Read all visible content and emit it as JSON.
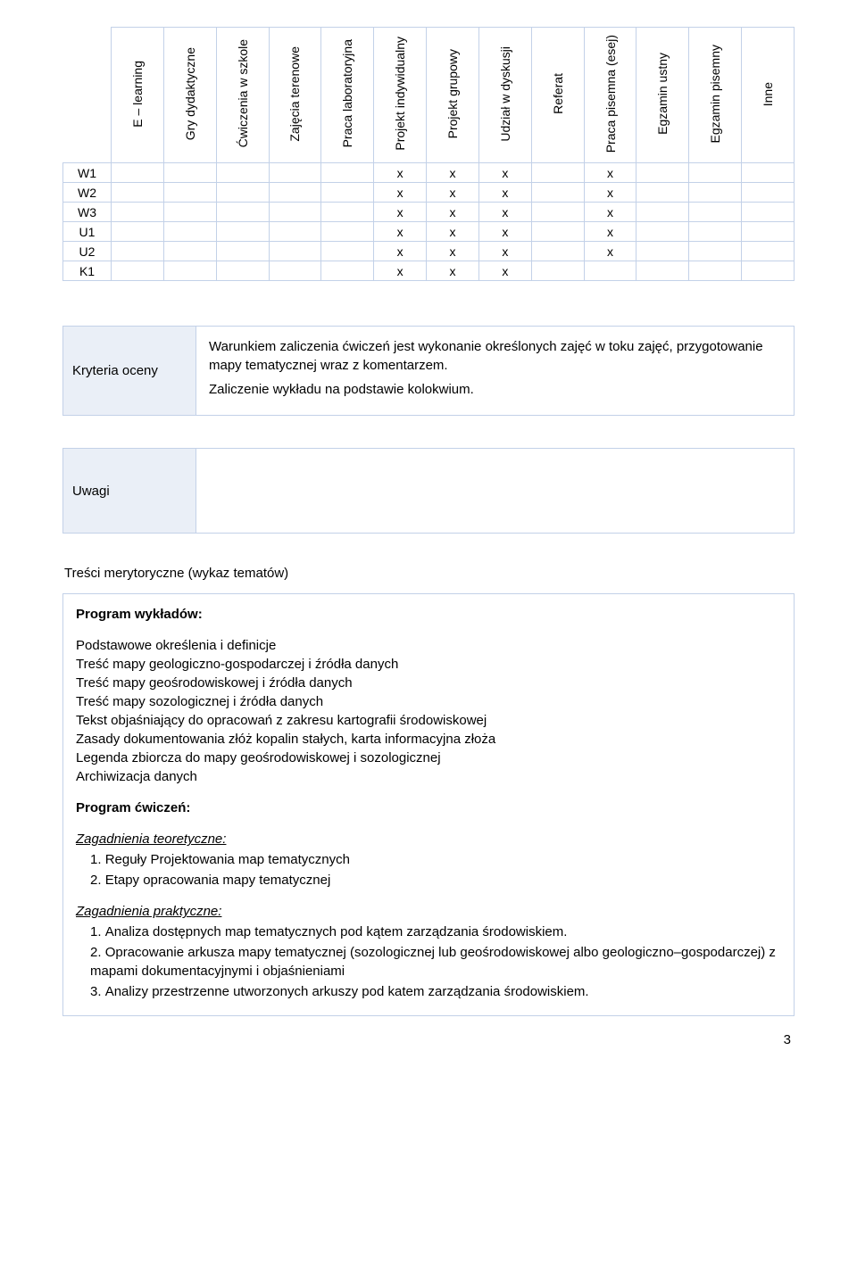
{
  "gridTable": {
    "headers": [
      "E – learning",
      "Gry dydaktyczne",
      "Ćwiczenia w szkole",
      "Zajęcia terenowe",
      "Praca laboratoryjna",
      "Projekt indywidualny",
      "Projekt grupowy",
      "Udział w dyskusji",
      "Referat",
      "Praca pisemna (esej)",
      "Egzamin ustny",
      "Egzamin pisemny",
      "Inne"
    ],
    "rows": [
      {
        "label": "W1",
        "cells": [
          "",
          "",
          "",
          "",
          "",
          "x",
          "x",
          "x",
          "",
          "x",
          "",
          "",
          ""
        ]
      },
      {
        "label": "W2",
        "cells": [
          "",
          "",
          "",
          "",
          "",
          "x",
          "x",
          "x",
          "",
          "x",
          "",
          "",
          ""
        ]
      },
      {
        "label": "W3",
        "cells": [
          "",
          "",
          "",
          "",
          "",
          "x",
          "x",
          "x",
          "",
          "x",
          "",
          "",
          ""
        ]
      },
      {
        "label": "U1",
        "cells": [
          "",
          "",
          "",
          "",
          "",
          "x",
          "x",
          "x",
          "",
          "x",
          "",
          "",
          ""
        ]
      },
      {
        "label": "U2",
        "cells": [
          "",
          "",
          "",
          "",
          "",
          "x",
          "x",
          "x",
          "",
          "x",
          "",
          "",
          ""
        ]
      },
      {
        "label": "K1",
        "cells": [
          "",
          "",
          "",
          "",
          "",
          "x",
          "x",
          "x",
          "",
          "",
          "",
          "",
          ""
        ]
      }
    ],
    "border_color": "#c3d1e8",
    "header_bg": "#ffffff",
    "label_bg": "#eaeff7"
  },
  "criteria": {
    "label": "Kryteria oceny",
    "line1": "Warunkiem zaliczenia ćwiczeń jest wykonanie określonych zajęć w toku zajęć, przygotowanie mapy tematycznej wraz z komentarzem.",
    "line2": "Zaliczenie wykładu na podstawie kolokwium."
  },
  "uwagi": {
    "label": "Uwagi",
    "content": ""
  },
  "meryt": {
    "title": "Treści merytoryczne (wykaz tematów)",
    "wyklad_title": "Program wykładów:",
    "wyklad_lines": [
      "Podstawowe określenia i definicje",
      "Treść mapy geologiczno-gospodarczej i źródła danych",
      "Treść mapy geośrodowiskowej i źródła danych",
      "Treść mapy sozologicznej i źródła danych",
      "Tekst objaśniający do opracowań z zakresu kartografii środowiskowej",
      "Zasady dokumentowania złóż kopalin stałych, karta informacyjna złoża",
      "Legenda zbiorcza do mapy geośrodowiskowej i sozologicznej",
      "Archiwizacja danych"
    ],
    "cwicz_title": "Program ćwiczeń:",
    "zag_teor_title": "Zagadnienia teoretyczne:",
    "zag_teor_items": [
      "Reguły Projektowania map tematycznych",
      "Etapy opracowania mapy tematycznej"
    ],
    "zag_prak_title": "Zagadnienia praktyczne:",
    "zag_prak_items": [
      "Analiza dostępnych map tematycznych pod kątem zarządzania środowiskiem.",
      "Opracowanie arkusza mapy tematycznej (sozologicznej lub geośrodowiskowej albo geologiczno–gospodarczej) z mapami dokumentacyjnymi i objaśnieniami",
      "Analizy przestrzenne utworzonych arkuszy pod katem zarządzania środowiskiem."
    ]
  },
  "page_number": "3"
}
